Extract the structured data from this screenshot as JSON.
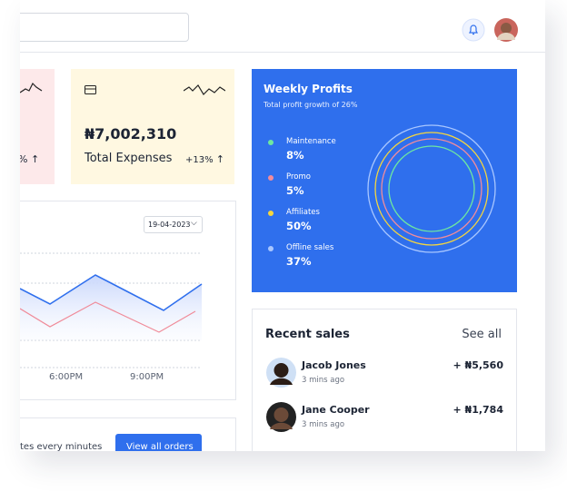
{
  "stat_cards": [
    {
      "change": "%"
    },
    {
      "amount": "₦7,002,310",
      "label": "Total Expenses",
      "change": "+13%"
    }
  ],
  "chart": {
    "date": "19-04-2023",
    "x_labels": [
      "6:00PM",
      "9:00PM"
    ]
  },
  "orders": {
    "note": "tes every minutes",
    "button": "View all orders"
  },
  "weekly_profits": {
    "title": "Weekly Profits",
    "subtitle": "Total profit growth of 26%",
    "items": [
      {
        "label": "Maintenance",
        "value": "8%"
      },
      {
        "label": "Promo",
        "value": "5%"
      },
      {
        "label": "Affiliates",
        "value": "50%"
      },
      {
        "label": "Offline sales",
        "value": "37%"
      }
    ]
  },
  "recent_sales": {
    "title": "Recent sales",
    "link": "See all",
    "items": [
      {
        "name": "Jacob Jones",
        "time": "3 mins ago",
        "amount": "+ ₦5,560"
      },
      {
        "name": "Jane Cooper",
        "time": "3 mins ago",
        "amount": "+ ₦1,784"
      }
    ]
  }
}
